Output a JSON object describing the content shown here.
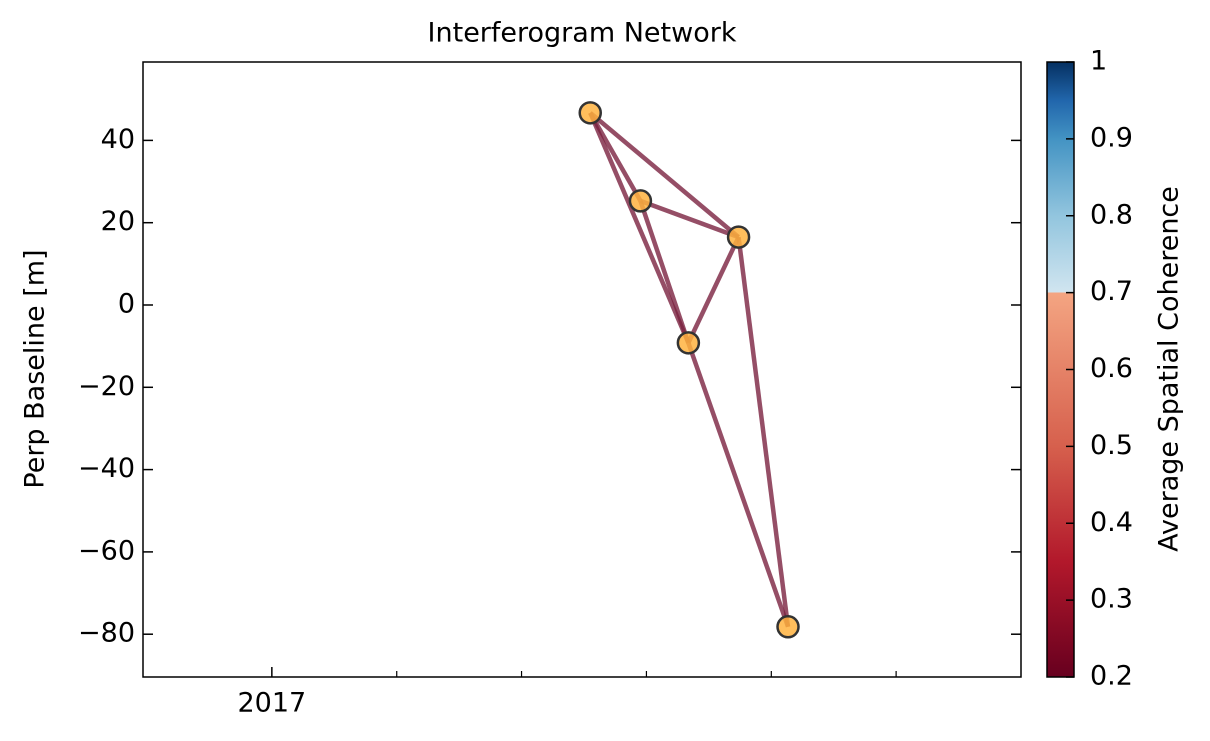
{
  "chart_data": {
    "type": "network",
    "title": "Interferogram Network",
    "ylabel": "Perp Baseline [m]",
    "x": [
      2017.425,
      2017.492,
      2017.623,
      2017.556,
      2017.689
    ],
    "values": [
      46.7,
      25.3,
      16.5,
      -9.2,
      -78.2
    ],
    "edges": [
      [
        0,
        1
      ],
      [
        0,
        2
      ],
      [
        0,
        3
      ],
      [
        1,
        2
      ],
      [
        1,
        3
      ],
      [
        2,
        3
      ],
      [
        2,
        4
      ],
      [
        3,
        4
      ]
    ],
    "edge_color": "#7a2240",
    "point_color": "#ffb340",
    "xlim": [
      2016.828,
      2018.0
    ],
    "xticks": [
      2017
    ],
    "xminorticks": [
      2017.1667,
      2017.3333,
      2017.5,
      2017.6667,
      2017.8333
    ],
    "ylim": [
      -90.4,
      59.05
    ],
    "yticks": [
      {
        "value": -80,
        "label": "−80"
      },
      {
        "value": -60,
        "label": "−60"
      },
      {
        "value": -40,
        "label": "−40"
      },
      {
        "value": -20,
        "label": "−20"
      },
      0,
      20,
      40
    ],
    "colorbar": {
      "label": "Average Spatial Coherence",
      "lim": [
        0.2,
        1.0
      ],
      "ticks": [
        0.2,
        0.3,
        0.4,
        0.5,
        0.6,
        0.7,
        0.8,
        0.9,
        1.0
      ],
      "stops": [
        [
          0.2,
          "#67001f"
        ],
        [
          0.35,
          "#b2182b"
        ],
        [
          0.5,
          "#d6604d"
        ],
        [
          0.7,
          "#f4a582"
        ],
        [
          0.7,
          "#d1e5f0"
        ],
        [
          0.8,
          "#92c5de"
        ],
        [
          0.9,
          "#4393c3"
        ],
        [
          0.95,
          "#2166ac"
        ],
        [
          1.0,
          "#053061"
        ]
      ]
    }
  }
}
